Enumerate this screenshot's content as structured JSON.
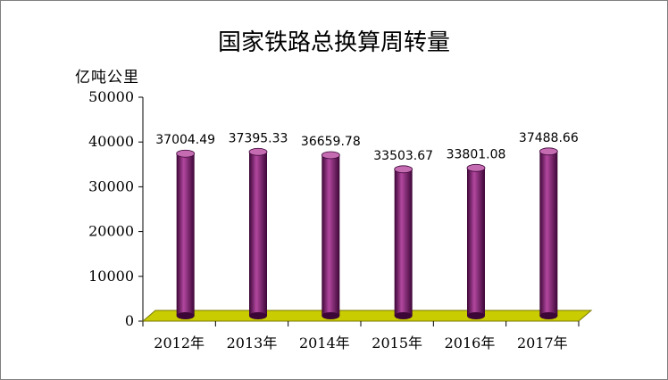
{
  "chart_data": {
    "type": "bar",
    "title": "国家铁路总换算周转量",
    "ylabel": "亿吨公里",
    "xlabel": "",
    "categories": [
      "2012年",
      "2013年",
      "2014年",
      "2015年",
      "2016年",
      "2017年"
    ],
    "values": [
      37004.49,
      37395.33,
      36659.78,
      33503.67,
      33801.08,
      37488.66
    ],
    "value_labels": [
      "37004.49",
      "37395.33",
      "36659.78",
      "33503.67",
      "33801.08",
      "37488.66"
    ],
    "ylim": [
      0,
      50000
    ],
    "yticks": [
      0,
      10000,
      20000,
      30000,
      40000,
      50000
    ],
    "ytick_labels": [
      "0",
      "10000",
      "20000",
      "30000",
      "40000",
      "50000"
    ],
    "grid": false,
    "bar_shape": "cylinder",
    "colors": {
      "bar": "#7a1f6e",
      "bar_dark": "#3c0636",
      "bar_light": "#b2479f",
      "bar_top": "#c46bb2",
      "floor": "#c8cc00",
      "floor_edge": "#7a7a00"
    }
  }
}
